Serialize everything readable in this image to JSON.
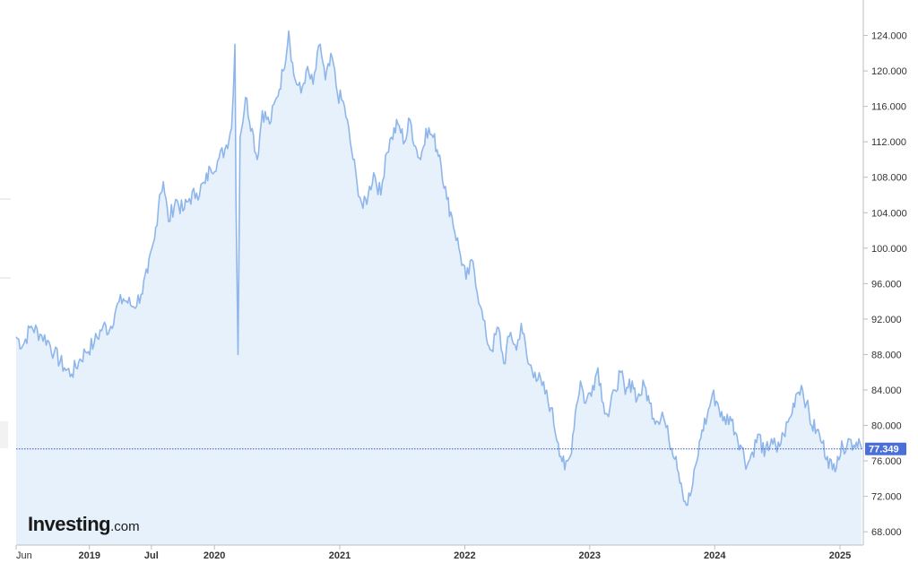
{
  "brand": {
    "main": "Investing",
    "tld": ".com"
  },
  "last_price": {
    "label": "77.349",
    "color": "#4a6fd8"
  },
  "colors": {
    "line": "#8fb6ea",
    "fill": "#e6f1fc",
    "axis": "#bdbdbd",
    "baseline": "#3a56c8"
  },
  "chart_data": {
    "type": "area",
    "title": "",
    "xlabel": "",
    "ylabel": "",
    "ylim": [
      66.5,
      128.0
    ],
    "y_ticks": [
      "68.000",
      "72.000",
      "76.000",
      "80.000",
      "84.000",
      "88.000",
      "92.000",
      "96.000",
      "100.000",
      "104.000",
      "108.000",
      "112.000",
      "116.000",
      "120.000",
      "124.000"
    ],
    "x_ticks": [
      {
        "label": "Jun",
        "date": "2018-06-01"
      },
      {
        "label": "2019",
        "date": "2019-01-01"
      },
      {
        "label": "Jul",
        "date": "2019-07-01"
      },
      {
        "label": "2020",
        "date": "2020-01-01"
      },
      {
        "label": "2021",
        "date": "2021-01-01"
      },
      {
        "label": "2022",
        "date": "2022-01-01"
      },
      {
        "label": "2023",
        "date": "2023-01-01"
      },
      {
        "label": "2024",
        "date": "2024-01-01"
      },
      {
        "label": "2025",
        "date": "2025-01-01"
      }
    ],
    "xlim": [
      "2018-06-01",
      "2025-03-10"
    ],
    "grid": false,
    "last_value": 77.349,
    "series": [
      {
        "values": [
          [
            "2018-06-01",
            90.0
          ],
          [
            "2018-06-20",
            89.0
          ],
          [
            "2018-07-15",
            91.2
          ],
          [
            "2018-08-10",
            90.3
          ],
          [
            "2018-09-01",
            89.6
          ],
          [
            "2018-09-20",
            88.2
          ],
          [
            "2018-10-20",
            86.5
          ],
          [
            "2018-11-10",
            85.8
          ],
          [
            "2018-12-01",
            87.2
          ],
          [
            "2018-12-20",
            88.3
          ],
          [
            "2019-01-15",
            89.3
          ],
          [
            "2019-02-10",
            91.2
          ],
          [
            "2019-03-01",
            90.8
          ],
          [
            "2019-03-20",
            93.2
          ],
          [
            "2019-04-10",
            94.3
          ],
          [
            "2019-05-10",
            93.4
          ],
          [
            "2019-06-01",
            94.8
          ],
          [
            "2019-06-20",
            97.2
          ],
          [
            "2019-07-10",
            101.0
          ],
          [
            "2019-07-25",
            106.0
          ],
          [
            "2019-08-05",
            107.5
          ],
          [
            "2019-08-20",
            103.0
          ],
          [
            "2019-09-10",
            105.5
          ],
          [
            "2019-10-01",
            104.2
          ],
          [
            "2019-10-20",
            105.6
          ],
          [
            "2019-11-10",
            106.2
          ],
          [
            "2019-12-05",
            107.3
          ],
          [
            "2019-12-20",
            109.0
          ],
          [
            "2020-01-10",
            109.8
          ],
          [
            "2020-02-01",
            111.2
          ],
          [
            "2020-02-20",
            113.5
          ],
          [
            "2020-03-01",
            123.0
          ],
          [
            "2020-03-04",
            105.5
          ],
          [
            "2020-03-10",
            88.0
          ],
          [
            "2020-03-16",
            112.5
          ],
          [
            "2020-04-01",
            117.0
          ],
          [
            "2020-04-20",
            113.5
          ],
          [
            "2020-05-05",
            110.0
          ],
          [
            "2020-05-20",
            115.5
          ],
          [
            "2020-06-10",
            114.0
          ],
          [
            "2020-07-01",
            117.0
          ],
          [
            "2020-07-20",
            120.0
          ],
          [
            "2020-08-05",
            124.5
          ],
          [
            "2020-08-20",
            119.5
          ],
          [
            "2020-09-10",
            117.5
          ],
          [
            "2020-09-25",
            120.0
          ],
          [
            "2020-10-15",
            118.5
          ],
          [
            "2020-11-05",
            123.0
          ],
          [
            "2020-11-20",
            119.0
          ],
          [
            "2020-12-10",
            121.5
          ],
          [
            "2020-12-25",
            117.5
          ],
          [
            "2021-01-15",
            116.0
          ],
          [
            "2021-02-05",
            111.0
          ],
          [
            "2021-02-20",
            107.5
          ],
          [
            "2021-03-10",
            104.5
          ],
          [
            "2021-03-25",
            106.0
          ],
          [
            "2021-04-10",
            108.5
          ],
          [
            "2021-05-01",
            106.0
          ],
          [
            "2021-05-15",
            110.5
          ],
          [
            "2021-06-01",
            112.5
          ],
          [
            "2021-06-20",
            114.0
          ],
          [
            "2021-07-10",
            112.0
          ],
          [
            "2021-07-25",
            114.5
          ],
          [
            "2021-08-10",
            111.5
          ],
          [
            "2021-08-25",
            110.0
          ],
          [
            "2021-09-10",
            113.5
          ],
          [
            "2021-10-01",
            112.5
          ],
          [
            "2021-10-20",
            110.5
          ],
          [
            "2021-11-10",
            105.5
          ],
          [
            "2021-11-25",
            103.5
          ],
          [
            "2021-12-15",
            100.0
          ],
          [
            "2022-01-05",
            96.5
          ],
          [
            "2022-01-25",
            98.5
          ],
          [
            "2022-02-15",
            93.5
          ],
          [
            "2022-03-05",
            90.0
          ],
          [
            "2022-03-20",
            88.5
          ],
          [
            "2022-04-10",
            91.0
          ],
          [
            "2022-04-25",
            87.0
          ],
          [
            "2022-05-15",
            90.5
          ],
          [
            "2022-06-01",
            88.5
          ],
          [
            "2022-06-15",
            91.5
          ],
          [
            "2022-07-05",
            87.0
          ],
          [
            "2022-07-25",
            86.0
          ],
          [
            "2022-08-15",
            84.5
          ],
          [
            "2022-09-10",
            82.0
          ],
          [
            "2022-10-01",
            78.0
          ],
          [
            "2022-10-20",
            75.0
          ],
          [
            "2022-11-05",
            76.5
          ],
          [
            "2022-11-20",
            81.5
          ],
          [
            "2022-12-05",
            85.0
          ],
          [
            "2022-12-20",
            82.5
          ],
          [
            "2023-01-10",
            84.5
          ],
          [
            "2023-01-25",
            86.5
          ],
          [
            "2023-02-10",
            82.5
          ],
          [
            "2023-02-25",
            81.0
          ],
          [
            "2023-03-15",
            84.0
          ],
          [
            "2023-04-01",
            86.0
          ],
          [
            "2023-04-15",
            83.5
          ],
          [
            "2023-05-05",
            85.0
          ],
          [
            "2023-05-20",
            83.0
          ],
          [
            "2023-06-10",
            84.5
          ],
          [
            "2023-06-25",
            82.5
          ],
          [
            "2023-07-15",
            80.5
          ],
          [
            "2023-08-01",
            81.5
          ],
          [
            "2023-08-20",
            78.5
          ],
          [
            "2023-09-10",
            76.5
          ],
          [
            "2023-09-25",
            73.5
          ],
          [
            "2023-10-10",
            71.0
          ],
          [
            "2023-10-25",
            72.5
          ],
          [
            "2023-11-10",
            76.0
          ],
          [
            "2023-11-25",
            79.5
          ],
          [
            "2023-12-10",
            81.0
          ],
          [
            "2023-12-25",
            83.5
          ],
          [
            "2024-01-10",
            82.5
          ],
          [
            "2024-01-25",
            80.5
          ],
          [
            "2024-02-15",
            81.0
          ],
          [
            "2024-03-05",
            79.0
          ],
          [
            "2024-03-20",
            77.5
          ],
          [
            "2024-04-05",
            75.5
          ],
          [
            "2024-04-20",
            77.0
          ],
          [
            "2024-05-10",
            79.0
          ],
          [
            "2024-05-25",
            76.5
          ],
          [
            "2024-06-15",
            78.5
          ],
          [
            "2024-07-01",
            77.0
          ],
          [
            "2024-07-20",
            79.0
          ],
          [
            "2024-08-10",
            81.0
          ],
          [
            "2024-08-25",
            83.5
          ],
          [
            "2024-09-10",
            84.5
          ],
          [
            "2024-09-25",
            82.5
          ],
          [
            "2024-10-10",
            80.0
          ],
          [
            "2024-10-25",
            79.5
          ],
          [
            "2024-11-10",
            78.0
          ],
          [
            "2024-11-25",
            76.5
          ],
          [
            "2024-12-10",
            75.0
          ],
          [
            "2024-12-25",
            76.5
          ],
          [
            "2025-01-10",
            77.5
          ],
          [
            "2025-01-25",
            78.5
          ],
          [
            "2025-02-10",
            77.8
          ],
          [
            "2025-02-25",
            78.5
          ],
          [
            "2025-03-05",
            77.349
          ]
        ]
      }
    ]
  }
}
